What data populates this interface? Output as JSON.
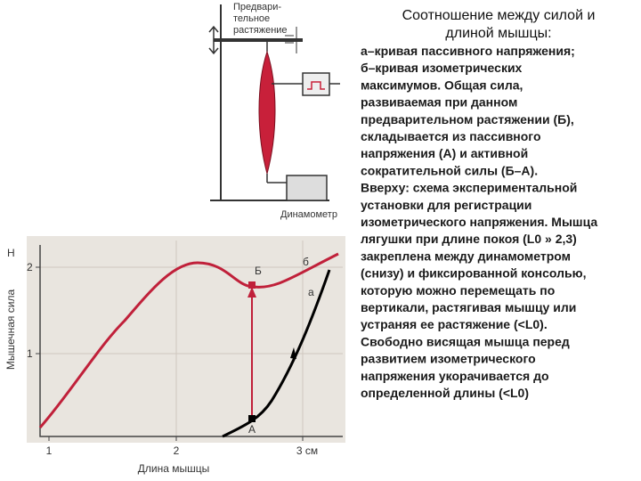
{
  "slide": {
    "title": [
      "Соотношение между силой и",
      "длиной мышцы:"
    ],
    "body": [
      "а–кривая пассивного напряжения;",
      "б–кривая изометрических",
      "максимумов. Общая сила,",
      "развиваемая при данном",
      "предварительном растяжении (Б),",
      "складывается из пассивного",
      "напряжения (А) и активной",
      "сократительной силы (Б–А).",
      "Вверху: схема экспериментальной",
      "установки для регистрации",
      "изометрического напряжения. Мышца",
      "лягушки при длине покоя (L0 » 2,3)",
      "закреплена между динамометром",
      "(снизу) и фиксированной консолью,",
      "которую можно перемещать по",
      "вертикали, растягивая мышцу или",
      "устраняя ее растяжение (<L0).",
      "Свободно висящая мышца перед",
      "развитием изометрического",
      "напряжения укорачивается до",
      "определенной длины (<L0)"
    ],
    "apparatus": {
      "stretch_label": [
        "Предвари-",
        "тельное",
        "растяжение"
      ],
      "dynamometer_label": "Динамометр"
    },
    "graph": {
      "y_unit": "Н",
      "y_label": "Мышечная сила",
      "x_label": "Длина мышцы",
      "y_ticks": [
        "2",
        "1"
      ],
      "x_ticks": [
        "1",
        "2",
        "3 см"
      ],
      "curve_labels": {
        "b_point": "Б",
        "b_curve": "б",
        "a_curve": "а",
        "a_point": "А"
      }
    }
  }
}
